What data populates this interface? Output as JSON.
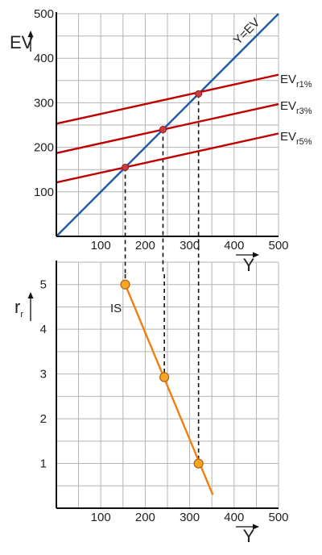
{
  "chart_data": [
    {
      "type": "line",
      "ylabel": "EV",
      "xlabel": "Y",
      "xlim": [
        0,
        500
      ],
      "ylim": [
        0,
        500
      ],
      "x_ticks": [
        100,
        200,
        300,
        400,
        500
      ],
      "y_ticks": [
        100,
        200,
        300,
        400,
        500
      ],
      "grid": true,
      "series": [
        {
          "name": "Y=EV",
          "color": "#1f5aa6",
          "x": [
            0,
            500
          ],
          "y": [
            0,
            500
          ]
        },
        {
          "name": "EV",
          "subscript": "r1%",
          "color": "#c00000",
          "x": [
            0,
            500
          ],
          "y": [
            253,
            363
          ]
        },
        {
          "name": "EV",
          "subscript": "r3%",
          "color": "#c00000",
          "x": [
            0,
            500
          ],
          "y": [
            187,
            297
          ]
        },
        {
          "name": "EV",
          "subscript": "r5%",
          "color": "#c00000",
          "x": [
            0,
            500
          ],
          "y": [
            121,
            231
          ]
        }
      ],
      "intersections": [
        {
          "x": 155,
          "y": 155
        },
        {
          "x": 240,
          "y": 240
        },
        {
          "x": 320,
          "y": 320
        }
      ],
      "point_color": "#c84040"
    },
    {
      "type": "line",
      "ylabel": "r",
      "ylabel_subscript": "r",
      "xlabel": "Y",
      "xlim": [
        0,
        500
      ],
      "ylim": [
        0,
        5.5
      ],
      "x_ticks": [
        100,
        200,
        300,
        400,
        500
      ],
      "y_ticks": [
        1,
        2,
        3,
        4,
        5
      ],
      "grid": true,
      "series": [
        {
          "name": "IS",
          "color": "#f07f12",
          "x": [
            155,
            352
          ],
          "y": [
            5,
            0.3
          ]
        }
      ],
      "points": [
        {
          "x": 155,
          "y": 5
        },
        {
          "x": 243,
          "y": 2.93
        },
        {
          "x": 320,
          "y": 1.0
        }
      ],
      "point_color": "#f5a623"
    }
  ]
}
